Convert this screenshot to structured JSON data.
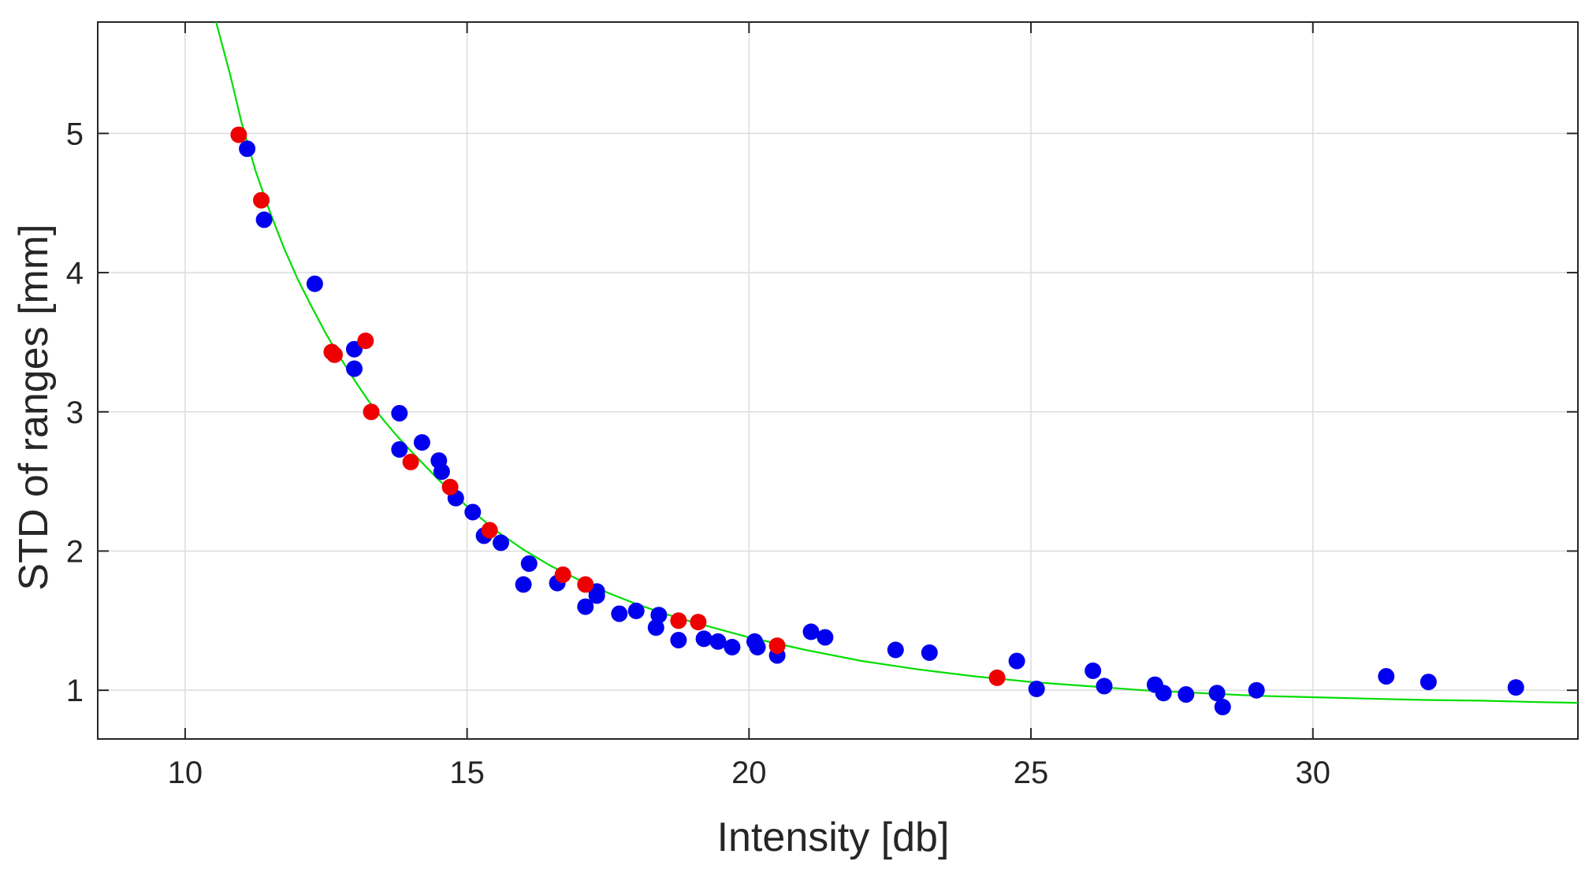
{
  "chart_data": {
    "type": "scatter",
    "title": "",
    "xlabel": "Intensity [db]",
    "ylabel": "STD of ranges [mm]",
    "xlim": [
      8.45,
      34.7
    ],
    "ylim": [
      0.65,
      5.8
    ],
    "xticks": [
      10,
      15,
      20,
      25,
      30
    ],
    "yticks": [
      1,
      2,
      3,
      4,
      5
    ],
    "grid": true,
    "series": [
      {
        "name": "blue points",
        "color": "#0000ee",
        "points": [
          [
            11.1,
            4.89
          ],
          [
            11.4,
            4.38
          ],
          [
            12.3,
            3.92
          ],
          [
            13.0,
            3.45
          ],
          [
            13.0,
            3.31
          ],
          [
            13.8,
            2.99
          ],
          [
            13.8,
            2.73
          ],
          [
            14.2,
            2.78
          ],
          [
            14.5,
            2.65
          ],
          [
            14.55,
            2.57
          ],
          [
            14.8,
            2.38
          ],
          [
            15.1,
            2.28
          ],
          [
            15.3,
            2.11
          ],
          [
            15.6,
            2.06
          ],
          [
            16.0,
            1.76
          ],
          [
            16.1,
            1.91
          ],
          [
            16.6,
            1.77
          ],
          [
            17.1,
            1.6
          ],
          [
            17.3,
            1.71
          ],
          [
            17.3,
            1.68
          ],
          [
            17.7,
            1.55
          ],
          [
            18.0,
            1.57
          ],
          [
            18.35,
            1.45
          ],
          [
            18.4,
            1.54
          ],
          [
            18.75,
            1.36
          ],
          [
            19.2,
            1.37
          ],
          [
            19.45,
            1.35
          ],
          [
            19.7,
            1.31
          ],
          [
            20.1,
            1.35
          ],
          [
            20.15,
            1.31
          ],
          [
            20.5,
            1.25
          ],
          [
            21.1,
            1.42
          ],
          [
            21.35,
            1.38
          ],
          [
            22.6,
            1.29
          ],
          [
            23.2,
            1.27
          ],
          [
            24.75,
            1.21
          ],
          [
            25.1,
            1.01
          ],
          [
            26.1,
            1.14
          ],
          [
            26.3,
            1.03
          ],
          [
            27.2,
            1.04
          ],
          [
            27.35,
            0.98
          ],
          [
            27.75,
            0.97
          ],
          [
            28.3,
            0.98
          ],
          [
            28.4,
            0.88
          ],
          [
            29.0,
            1.0
          ],
          [
            31.3,
            1.1
          ],
          [
            32.05,
            1.06
          ],
          [
            33.6,
            1.02
          ]
        ]
      },
      {
        "name": "red points",
        "color": "#ee0000",
        "points": [
          [
            10.95,
            4.99
          ],
          [
            11.35,
            4.52
          ],
          [
            12.6,
            3.43
          ],
          [
            12.65,
            3.41
          ],
          [
            13.2,
            3.51
          ],
          [
            13.3,
            3.0
          ],
          [
            14.0,
            2.64
          ],
          [
            14.7,
            2.46
          ],
          [
            15.4,
            2.15
          ],
          [
            16.7,
            1.83
          ],
          [
            17.1,
            1.76
          ],
          [
            18.75,
            1.5
          ],
          [
            19.1,
            1.49
          ],
          [
            20.5,
            1.32
          ],
          [
            24.4,
            1.09
          ]
        ]
      }
    ],
    "fit_curve": {
      "name": "fit",
      "color": "#00dd00",
      "x": [
        10.55,
        10.8,
        11.0,
        11.25,
        11.5,
        11.75,
        12.0,
        12.25,
        12.5,
        12.75,
        13.0,
        13.25,
        13.5,
        13.75,
        14.0,
        14.5,
        15.0,
        15.5,
        16.0,
        16.5,
        17.0,
        17.5,
        18.0,
        18.5,
        19.0,
        20.0,
        21.0,
        22.0,
        23.0,
        24.0,
        25.0,
        26.0,
        27.0,
        28.0,
        29.0,
        30.0,
        31.0,
        32.0,
        33.0,
        34.0,
        34.7
      ],
      "y": [
        5.8,
        5.42,
        5.08,
        4.73,
        4.44,
        4.18,
        3.95,
        3.75,
        3.56,
        3.39,
        3.23,
        3.08,
        2.95,
        2.83,
        2.72,
        2.51,
        2.32,
        2.15,
        2.01,
        1.89,
        1.79,
        1.7,
        1.62,
        1.55,
        1.49,
        1.38,
        1.29,
        1.21,
        1.15,
        1.1,
        1.06,
        1.03,
        1.0,
        0.98,
        0.96,
        0.95,
        0.94,
        0.93,
        0.925,
        0.915,
        0.91
      ]
    }
  }
}
